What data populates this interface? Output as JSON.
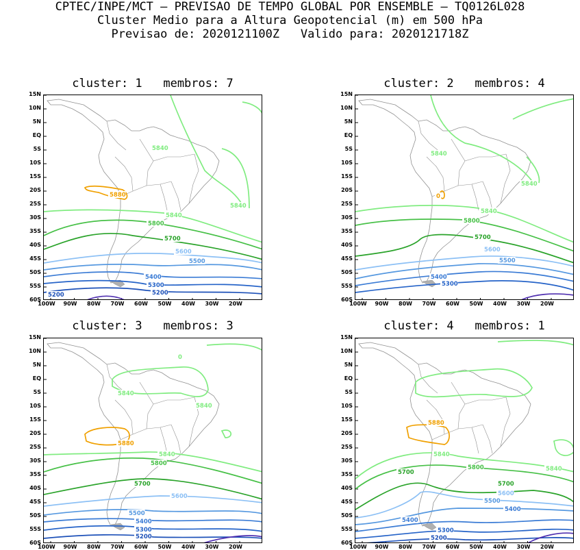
{
  "header": {
    "line1": "CPTEC/INPE/MCT — PREVISAO DE TEMPO GLOBAL POR ENSEMBLE — TQ0126L028",
    "line2": "Cluster Medio para a Altura Geopotencial (m) em 500 hPa",
    "line3": "Previsao de: 2020121100Z   Valido para: 2020121718Z"
  },
  "lat_labels": [
    "15N",
    "10N",
    "5N",
    "EQ",
    "5S",
    "10S",
    "15S",
    "20S",
    "25S",
    "30S",
    "35S",
    "40S",
    "45S",
    "50S",
    "55S",
    "60S"
  ],
  "lon_labels": [
    "100W",
    "90W",
    "80W",
    "70W",
    "60W",
    "50W",
    "40W",
    "30W",
    "20W"
  ],
  "colors": {
    "c5200": "#1c50b8",
    "c5300": "#2563c8",
    "c5400": "#3a7bd5",
    "c5500": "#5598e0",
    "c5600": "#8cc0f5",
    "c5700": "#2aa32a",
    "c5800": "#46c046",
    "c5840": "#80ec80",
    "c5880": "#f0a000",
    "deep": "#5030b0",
    "coast": "#909090"
  },
  "panels": [
    {
      "title": "cluster: 1   membros: 7",
      "labels": {
        "a": "5840",
        "b": "5840",
        "c": "5880",
        "d": "5840",
        "e": "5800",
        "f": "5700",
        "g": "5600",
        "h": "5500",
        "i": "5400",
        "j": "5300",
        "k": "5200",
        "l": "5200"
      }
    },
    {
      "title": "cluster: 2   membros: 4",
      "labels": {
        "a": "5840",
        "b": "5840",
        "c": "0",
        "d": "5840",
        "e": "5800",
        "f": "5700",
        "g": "5600",
        "h": "5500",
        "i": "5400",
        "j": "5300"
      }
    },
    {
      "title": "cluster: 3   membros: 3",
      "labels": {
        "a": "5840",
        "b": "5840",
        "c": "5880",
        "d": "5840",
        "e": "5800",
        "f": "5700",
        "g": "5600",
        "h": "5500",
        "i": "5400",
        "j": "5300",
        "k": "5200",
        "l": "0"
      }
    },
    {
      "title": "cluster: 4   membros: 1",
      "labels": {
        "a": "5840",
        "b": "5880",
        "c": "5840",
        "d": "5800",
        "e": "5700",
        "f": "5700",
        "g": "5600",
        "h": "5500",
        "i": "5400",
        "j": "5400",
        "k": "5300",
        "l": "5200"
      }
    }
  ]
}
